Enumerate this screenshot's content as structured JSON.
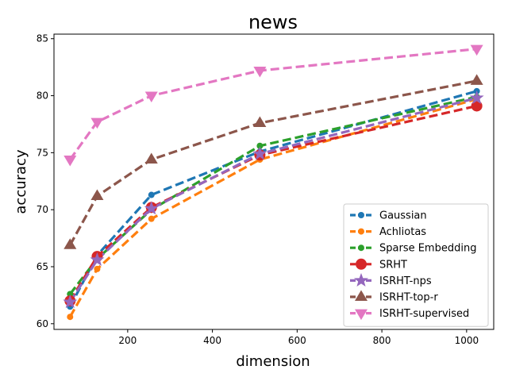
{
  "chart_data": {
    "type": "line",
    "title": "news",
    "xlabel": "dimension",
    "ylabel": "accuracy",
    "xlim": [
      26,
      1064
    ],
    "ylim": [
      59.5,
      85.4
    ],
    "xticks": [
      200,
      400,
      600,
      800,
      1000
    ],
    "yticks": [
      60,
      65,
      70,
      75,
      80,
      85
    ],
    "grid": false,
    "legend_position": "lower-right",
    "x": [
      64,
      128,
      256,
      512,
      1024
    ],
    "series": [
      {
        "name": "Gaussian",
        "color": "#1f77b4",
        "marker": "circle",
        "values": [
          61.5,
          66.0,
          71.3,
          75.1,
          80.4
        ]
      },
      {
        "name": "Achliotas",
        "color": "#ff7f0e",
        "marker": "circle",
        "values": [
          60.6,
          64.8,
          69.2,
          74.4,
          79.7
        ]
      },
      {
        "name": "Sparse Embedding",
        "color": "#2ca02c",
        "marker": "circle",
        "values": [
          62.6,
          65.7,
          70.0,
          75.6,
          79.9
        ]
      },
      {
        "name": "SRHT",
        "color": "#d62728",
        "marker": "big-circle",
        "values": [
          62.0,
          65.9,
          70.2,
          74.8,
          79.1
        ]
      },
      {
        "name": "ISRHT-nps",
        "color": "#9467bd",
        "marker": "star",
        "values": [
          61.9,
          65.6,
          70.1,
          74.9,
          79.8
        ]
      },
      {
        "name": "ISRHT-top-r",
        "color": "#8c564b",
        "marker": "triangle-up",
        "values": [
          66.9,
          71.2,
          74.4,
          77.6,
          81.3
        ]
      },
      {
        "name": "ISRHT-supervised",
        "color": "#e377c2",
        "marker": "triangle-down",
        "values": [
          74.4,
          77.7,
          80.0,
          82.2,
          84.1
        ]
      }
    ]
  }
}
